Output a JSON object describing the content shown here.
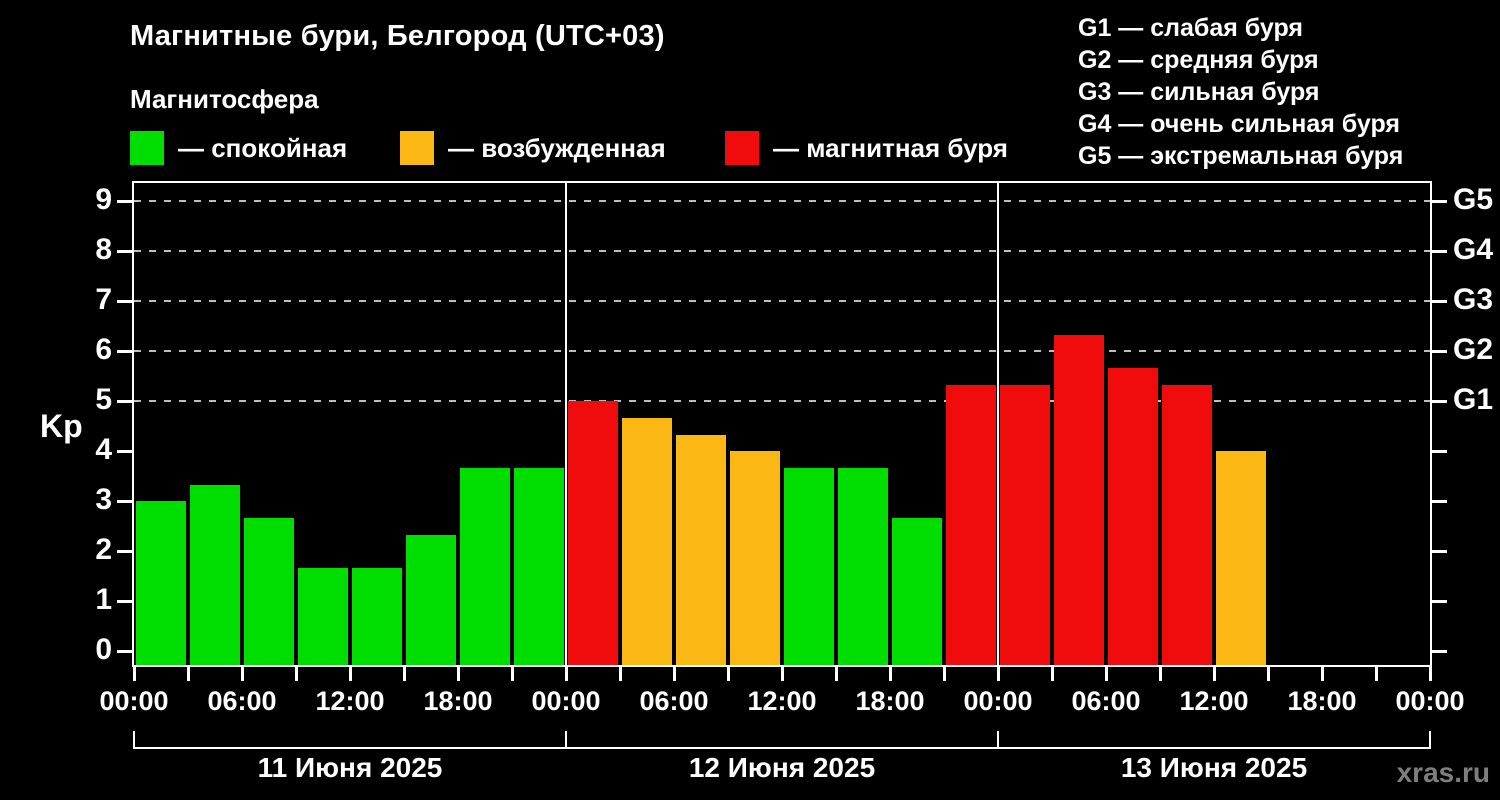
{
  "header": {
    "title": "Магнитные бури, Белгород (UTC+03)",
    "subtitle": "Магнитосфера"
  },
  "legend": {
    "items": [
      {
        "status": "quiet",
        "label": "— спокойная"
      },
      {
        "status": "excited",
        "label": "— возбужденная"
      },
      {
        "status": "storm",
        "label": "— магнитная буря"
      }
    ]
  },
  "g_scale_legend": {
    "items": [
      "G1 — слабая буря",
      "G2 — средняя буря",
      "G3 — сильная буря",
      "G4 — очень сильная буря",
      "G5 — экстремальная буря"
    ]
  },
  "colors": {
    "quiet": "#00DD00",
    "excited": "#FBB713",
    "storm": "#F00C0C",
    "axis": "#FFFFFF",
    "gridline": "#BDBDBD",
    "watermark": "#7E7E7E"
  },
  "watermark": "xras.ru",
  "chart_data": {
    "type": "bar",
    "title": "Магнитные бури, Белгород (UTC+03)",
    "ylabel": "Kp",
    "ylim": [
      0,
      9
    ],
    "y_ticks": [
      0,
      1,
      2,
      3,
      4,
      5,
      6,
      7,
      8,
      9
    ],
    "gridlines_at_kp": [
      5,
      6,
      7,
      8,
      9
    ],
    "grid": "dashed horizontal at storm levels only",
    "right_axis": [
      {
        "kp": 5,
        "label": "G1"
      },
      {
        "kp": 6,
        "label": "G2"
      },
      {
        "kp": 7,
        "label": "G3"
      },
      {
        "kp": 8,
        "label": "G4"
      },
      {
        "kp": 9,
        "label": "G5"
      }
    ],
    "x_tick_labels": [
      "00:00",
      "06:00",
      "12:00",
      "18:00",
      "00:00",
      "06:00",
      "12:00",
      "18:00",
      "00:00",
      "06:00",
      "12:00",
      "18:00",
      "00:00"
    ],
    "bar_duration_hours": 3,
    "days": [
      {
        "date": "11 Июня 2025",
        "bars": [
          {
            "start": "00:00",
            "kp": 3.0,
            "status": "quiet"
          },
          {
            "start": "03:00",
            "kp": 3.33,
            "status": "quiet"
          },
          {
            "start": "06:00",
            "kp": 2.67,
            "status": "quiet"
          },
          {
            "start": "09:00",
            "kp": 1.67,
            "status": "quiet"
          },
          {
            "start": "12:00",
            "kp": 1.67,
            "status": "quiet"
          },
          {
            "start": "15:00",
            "kp": 2.33,
            "status": "quiet"
          },
          {
            "start": "18:00",
            "kp": 3.67,
            "status": "quiet"
          },
          {
            "start": "21:00",
            "kp": 3.67,
            "status": "quiet"
          }
        ]
      },
      {
        "date": "12 Июня 2025",
        "bars": [
          {
            "start": "00:00",
            "kp": 5.0,
            "status": "storm"
          },
          {
            "start": "03:00",
            "kp": 4.67,
            "status": "excited"
          },
          {
            "start": "06:00",
            "kp": 4.33,
            "status": "excited"
          },
          {
            "start": "09:00",
            "kp": 4.0,
            "status": "excited"
          },
          {
            "start": "12:00",
            "kp": 3.67,
            "status": "quiet"
          },
          {
            "start": "15:00",
            "kp": 3.67,
            "status": "quiet"
          },
          {
            "start": "18:00",
            "kp": 2.67,
            "status": "quiet"
          },
          {
            "start": "21:00",
            "kp": 5.33,
            "status": "storm"
          }
        ]
      },
      {
        "date": "13 Июня 2025",
        "bars": [
          {
            "start": "00:00",
            "kp": 5.33,
            "status": "storm"
          },
          {
            "start": "03:00",
            "kp": 6.33,
            "status": "storm"
          },
          {
            "start": "06:00",
            "kp": 5.67,
            "status": "storm"
          },
          {
            "start": "09:00",
            "kp": 5.33,
            "status": "storm"
          },
          {
            "start": "12:00",
            "kp": 4.0,
            "status": "excited"
          }
        ]
      }
    ]
  }
}
